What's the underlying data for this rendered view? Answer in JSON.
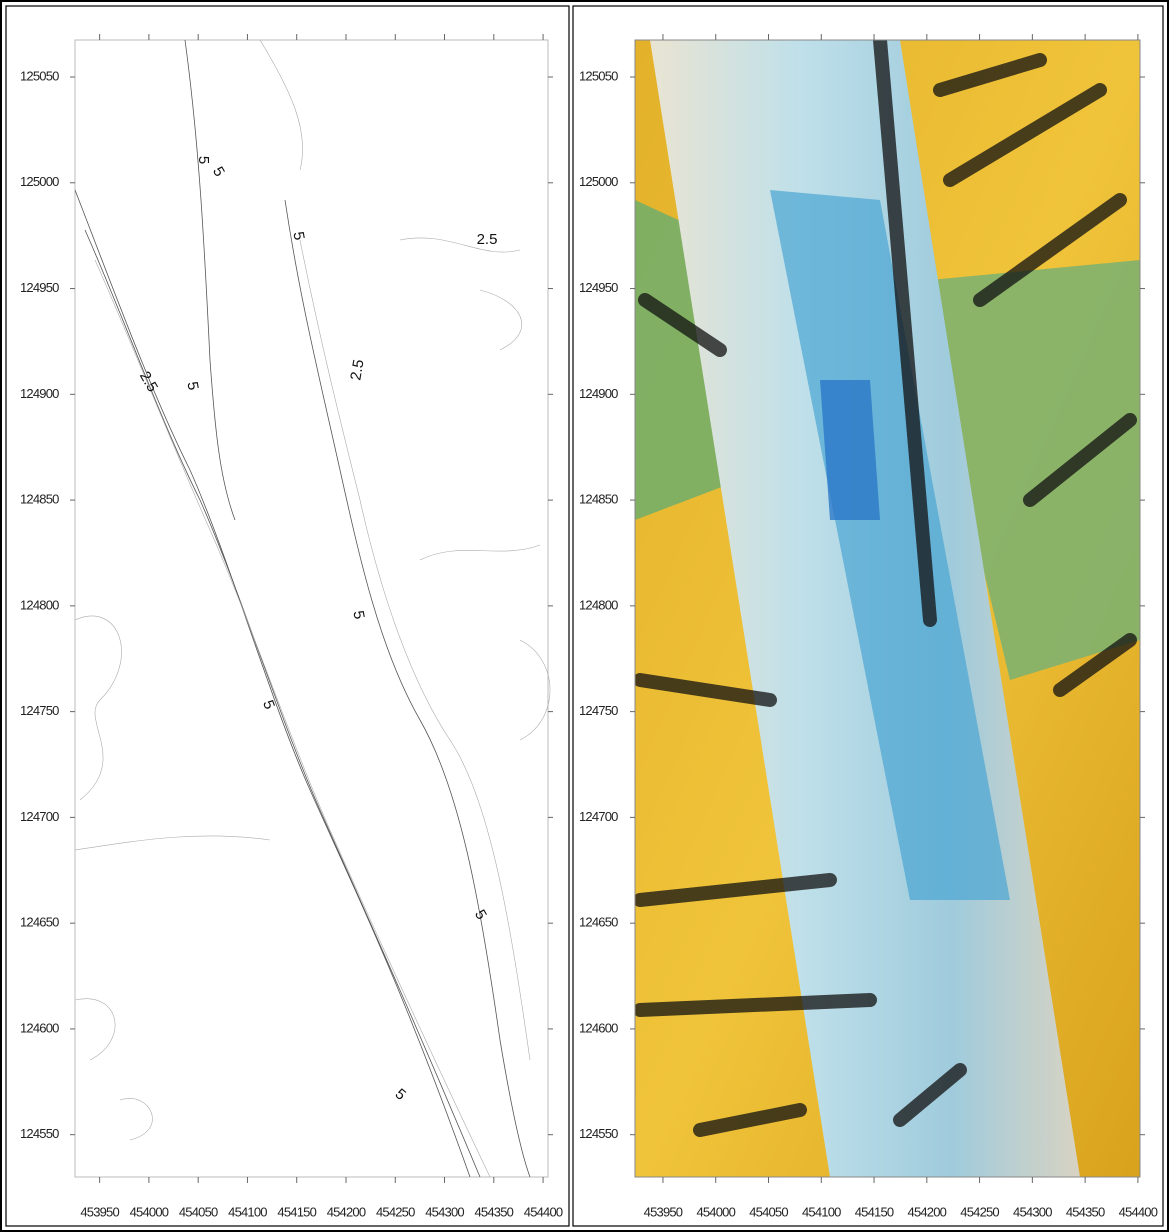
{
  "panels": [
    {
      "xlim": [
        453925,
        454405
      ],
      "ylim": [
        124530,
        125067.5
      ],
      "xticks": [
        453950,
        454000,
        454050,
        454100,
        454150,
        454200,
        454250,
        454300,
        454350,
        454400
      ],
      "yticks": [
        124550,
        124600,
        124650,
        124700,
        124750,
        124800,
        124850,
        124900,
        124950,
        125000,
        125050
      ],
      "contour_labels": [
        5,
        5,
        5,
        2.5,
        2.5,
        5,
        2.5,
        5,
        5,
        5,
        5
      ]
    },
    {
      "xlim": [
        453923.5,
        454402
      ],
      "ylim": [
        124530,
        125067.5
      ],
      "xticks": [
        453950,
        454000,
        454050,
        454100,
        454150,
        454200,
        454250,
        454300,
        454350,
        454400
      ],
      "yticks": [
        124550,
        124600,
        124650,
        124700,
        124750,
        124800,
        124850,
        124900,
        124950,
        125000,
        125050
      ]
    }
  ]
}
